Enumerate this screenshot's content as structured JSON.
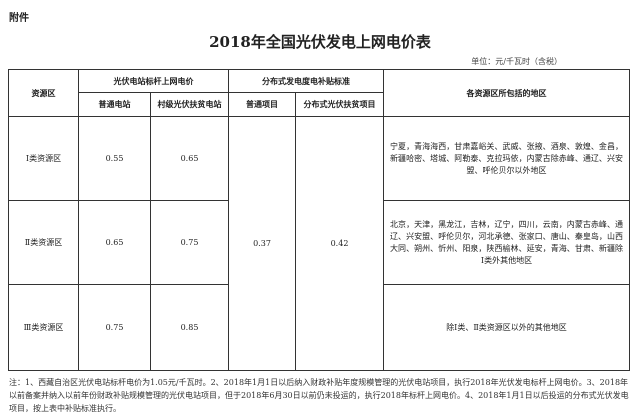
{
  "attachment_label": "附件",
  "title": "2018年全国光伏发电上网电价表",
  "unit": "单位：元/千瓦时（含税）",
  "headers": {
    "resource_area": "资源区",
    "benchmark_group": "光伏电站标杆上网电价",
    "ordinary_station": "普通电站",
    "village_poverty_station": "村级光伏扶贫电站",
    "distributed_group": "分布式发电度电补贴标准",
    "ordinary_project": "普通项目",
    "distributed_poverty_project": "分布式光伏扶贫项目",
    "regions": "各资源区所包括的地区"
  },
  "rows": [
    {
      "area": "Ⅰ类资源区",
      "ordinary": "0.55",
      "village": "0.65",
      "regions": "宁夏，青海海西，甘肃嘉峪关、武威、张掖、酒泉、敦煌、金昌，新疆哈密、塔城、阿勒泰、克拉玛依，内蒙古除赤峰、通辽、兴安盟、呼伦贝尔以外地区"
    },
    {
      "area": "Ⅱ类资源区",
      "ordinary": "0.65",
      "village": "0.75",
      "regions": "北京，天津，黑龙江，吉林，辽宁，四川，云南，内蒙古赤峰、通辽、兴安盟、呼伦贝尔，河北承德、张家口、唐山、秦皇岛，山西大同、朔州、忻州、阳泉，陕西榆林、延安，青海、甘肃、新疆除Ⅰ类外其他地区"
    },
    {
      "area": "Ⅲ类资源区",
      "ordinary": "0.75",
      "village": "0.85",
      "regions": "除Ⅰ类、Ⅱ类资源区以外的其他地区"
    }
  ],
  "distributed_ordinary": "0.37",
  "distributed_poverty": "0.42",
  "note": "注：1、西藏自治区光伏电站标杆电价为1.05元/千瓦时。2、2018年1月1日以后纳入财政补贴年度规模管理的光伏电站项目，执行2018年光伏发电标杆上网电价。3、2018年以前备案并纳入以前年份财政补贴规模管理的光伏电站项目，但于2018年6月30日以前仍未投运的，执行2018年标杆上网电价。4、2018年1月1日以后投运的分布式光伏发电项目，按上表中补贴标准执行。"
}
